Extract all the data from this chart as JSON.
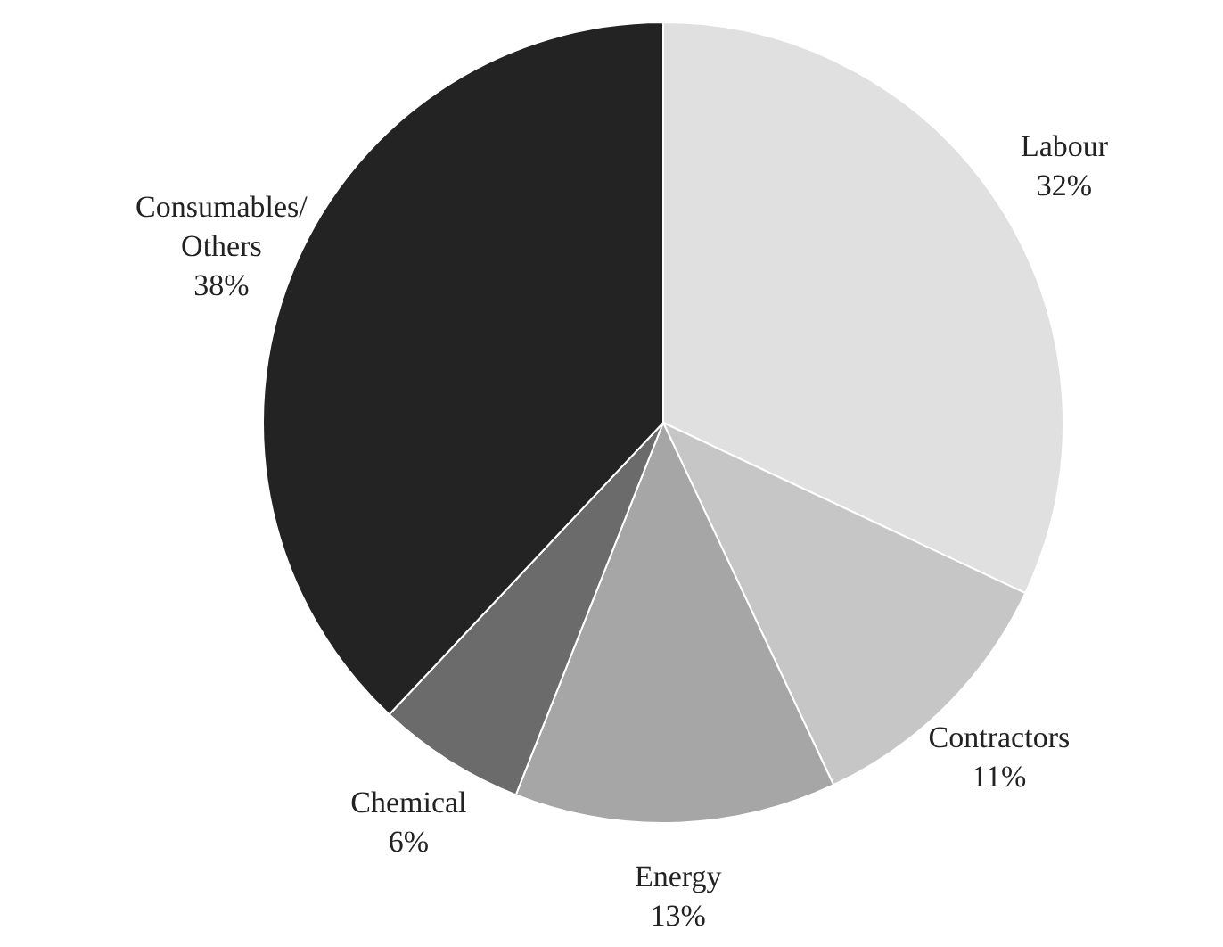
{
  "chart_data": {
    "type": "pie",
    "categories": [
      "Labour",
      "Contractors",
      "Energy",
      "Chemical",
      "Consumables/Others"
    ],
    "values": [
      32,
      11,
      13,
      6,
      38
    ],
    "colors": [
      "#e0e0e0",
      "#c6c6c6",
      "#a6a6a6",
      "#6b6b6b",
      "#232323"
    ],
    "value_labels": [
      "32%",
      "11%",
      "13%",
      "6%",
      "38%"
    ],
    "legend": false
  }
}
